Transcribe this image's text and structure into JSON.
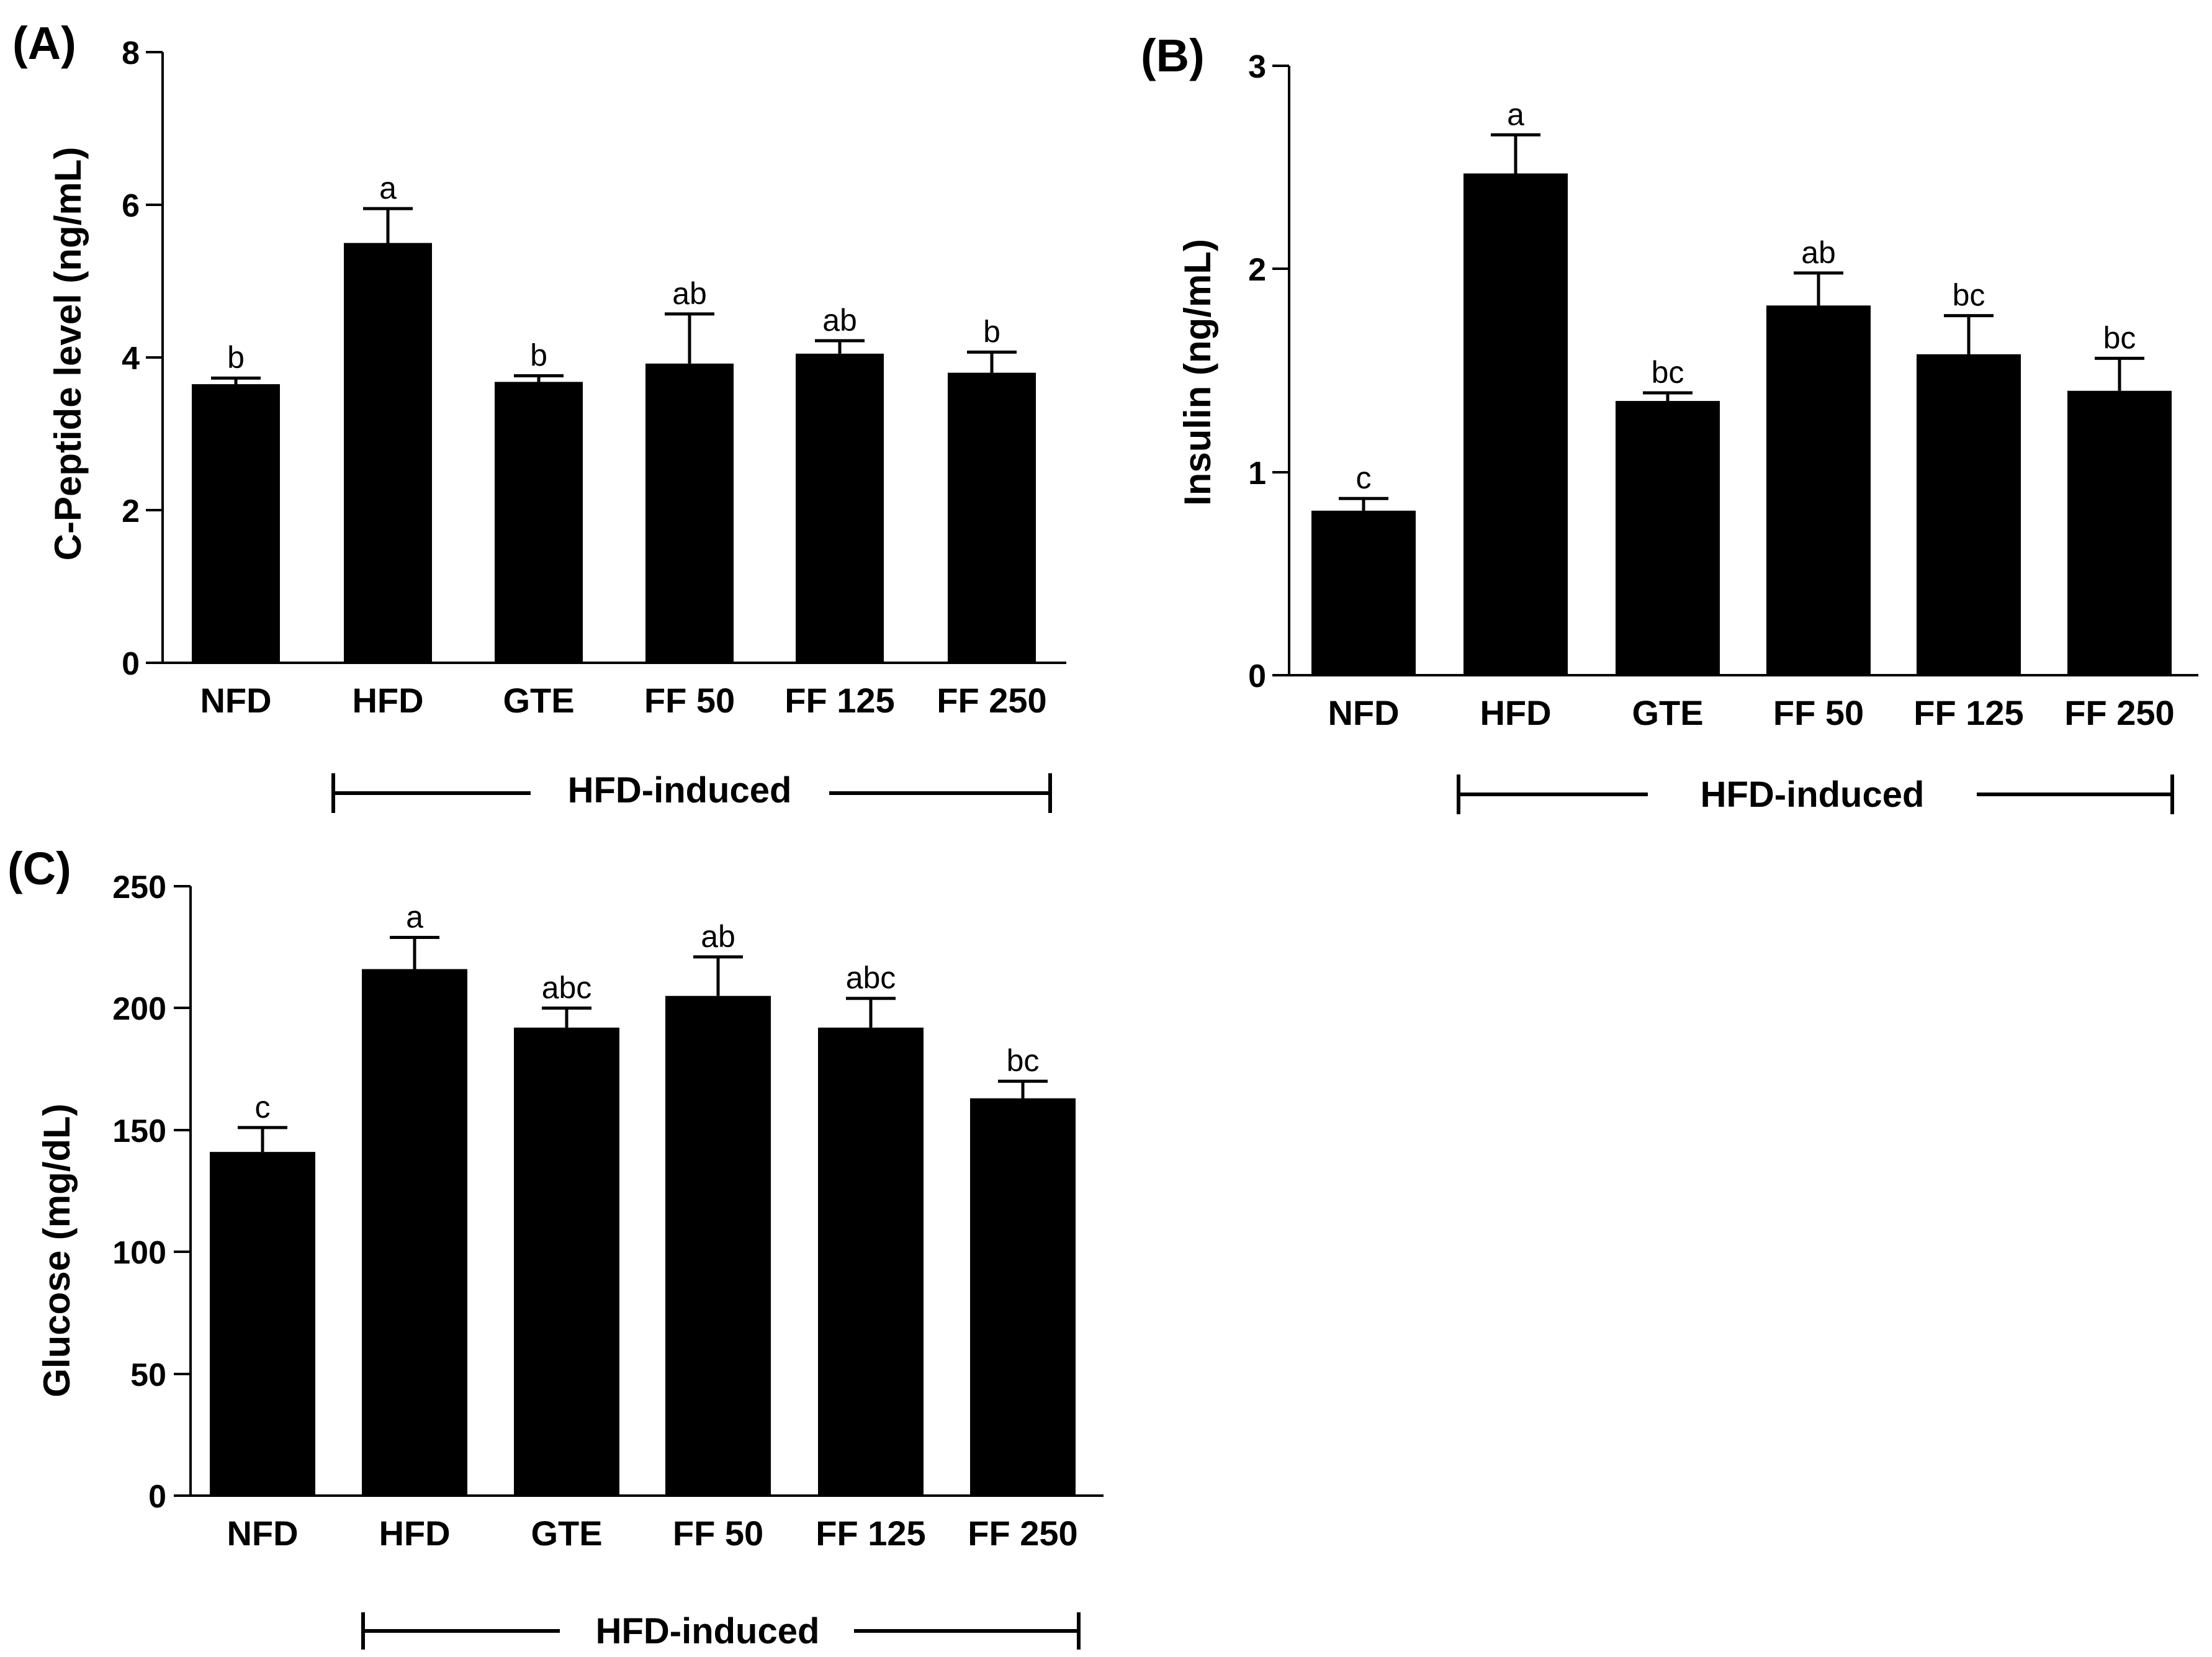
{
  "chart_data": [
    {
      "type": "bar",
      "panel": "(A)",
      "title": "",
      "ylabel": "C-Peptide level (ng/mL)",
      "xlabel": "",
      "ylim": [
        0,
        8
      ],
      "yticks": [
        0,
        2,
        4,
        6,
        8
      ],
      "categories": [
        "NFD",
        "HFD",
        "GTE",
        "FF 50",
        "FF 125",
        "FF 250"
      ],
      "values": [
        3.65,
        5.5,
        3.68,
        3.92,
        4.05,
        3.8
      ],
      "errors": [
        0.08,
        0.45,
        0.08,
        0.65,
        0.17,
        0.27
      ],
      "significance": [
        "b",
        "a",
        "b",
        "ab",
        "ab",
        "b"
      ],
      "group_label": "HFD-induced",
      "grid": false,
      "color": "#000000"
    },
    {
      "type": "bar",
      "panel": "(B)",
      "title": "",
      "ylabel": "Insulin (ng/mL)",
      "xlabel": "",
      "ylim": [
        0,
        3
      ],
      "yticks": [
        0,
        1,
        2,
        3
      ],
      "categories": [
        "NFD",
        "HFD",
        "GTE",
        "FF 50",
        "FF 125",
        "FF 250"
      ],
      "values": [
        0.81,
        2.47,
        1.35,
        1.82,
        1.58,
        1.4
      ],
      "errors": [
        0.06,
        0.19,
        0.04,
        0.16,
        0.19,
        0.16
      ],
      "significance": [
        "c",
        "a",
        "bc",
        "ab",
        "bc",
        "bc"
      ],
      "group_label": "HFD-induced",
      "grid": false,
      "color": "#000000"
    },
    {
      "type": "bar",
      "panel": "(C)",
      "title": "",
      "ylabel": "Glucose (mg/dL)",
      "xlabel": "",
      "ylim": [
        0,
        250
      ],
      "yticks": [
        0,
        50,
        100,
        150,
        200,
        250
      ],
      "categories": [
        "NFD",
        "HFD",
        "GTE",
        "FF 50",
        "FF 125",
        "FF 250"
      ],
      "values": [
        141,
        216,
        192,
        205,
        192,
        163
      ],
      "errors": [
        10,
        13,
        8,
        16,
        12,
        7
      ],
      "significance": [
        "c",
        "a",
        "abc",
        "ab",
        "abc",
        "bc"
      ],
      "group_label": "HFD-induced",
      "grid": false,
      "color": "#000000"
    }
  ]
}
